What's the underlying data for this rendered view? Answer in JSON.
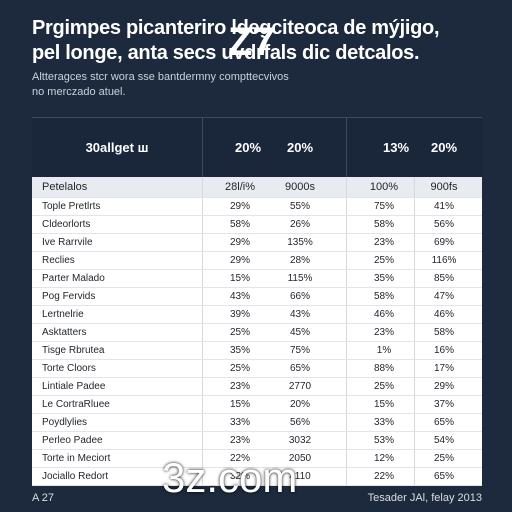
{
  "title_lines": [
    "Prgimpes picanterirо ldegciteoca de mýjigo,",
    "pel longe, anta secs uvdrfals dic detcalos."
  ],
  "title_overlay": "Z7",
  "subtitle_lines": [
    "Altteragces stcr wora sse bantdermny compttecvivos",
    "no merczado atuel."
  ],
  "table_header": {
    "label": "30allget ш",
    "cols": [
      "20%",
      "20%",
      "13%",
      "20%"
    ]
  },
  "column_row": {
    "name": "Petelalos",
    "cols": [
      "28l/i%",
      "9000s",
      "100%",
      "900fs"
    ]
  },
  "rows": [
    {
      "name": "Tople Pretlrts",
      "v": [
        "29%",
        "55%",
        "75%",
        "41%"
      ]
    },
    {
      "name": "Cldeorlorts",
      "v": [
        "58%",
        "26%",
        "58%",
        "56%"
      ]
    },
    {
      "name": "Ive Rarrvile",
      "v": [
        "29%",
        "135%",
        "23%",
        "69%"
      ]
    },
    {
      "name": "Reclies",
      "v": [
        "29%",
        "28%",
        "25%",
        "116%"
      ]
    },
    {
      "name": "Parter Malado",
      "v": [
        "15%",
        "115%",
        "35%",
        "85%"
      ]
    },
    {
      "name": "Pog Fervids",
      "v": [
        "43%",
        "66%",
        "58%",
        "47%"
      ]
    },
    {
      "name": "Lertnelrie",
      "v": [
        "39%",
        "43%",
        "46%",
        "46%"
      ]
    },
    {
      "name": "Asktatters",
      "v": [
        "25%",
        "45%",
        "23%",
        "58%"
      ]
    },
    {
      "name": "Tisge Rbrutea",
      "v": [
        "35%",
        "75%",
        "1%",
        "16%"
      ]
    },
    {
      "name": "Torte Cloors",
      "v": [
        "25%",
        "65%",
        "88%",
        "17%"
      ]
    },
    {
      "name": "Lintiale Padee",
      "v": [
        "23%",
        "2770",
        "25%",
        "29%"
      ]
    },
    {
      "name": "Le CortraRluee",
      "v": [
        "15%",
        "20%",
        "15%",
        "37%"
      ]
    },
    {
      "name": "Poydlylies",
      "v": [
        "33%",
        "56%",
        "33%",
        "65%"
      ]
    },
    {
      "name": "Perleo Padee",
      "v": [
        "23%",
        "3032",
        "53%",
        "54%"
      ]
    },
    {
      "name": "Torte in Meciort",
      "v": [
        "22%",
        "2050",
        "12%",
        "25%"
      ]
    },
    {
      "name": "Jociallo Redort",
      "v": [
        "32%",
        "4110",
        "22%",
        "65%"
      ]
    }
  ],
  "footer_left": "A 27",
  "footer_right": "Tesader JAl, felay 2013",
  "watermark": "3z.com"
}
